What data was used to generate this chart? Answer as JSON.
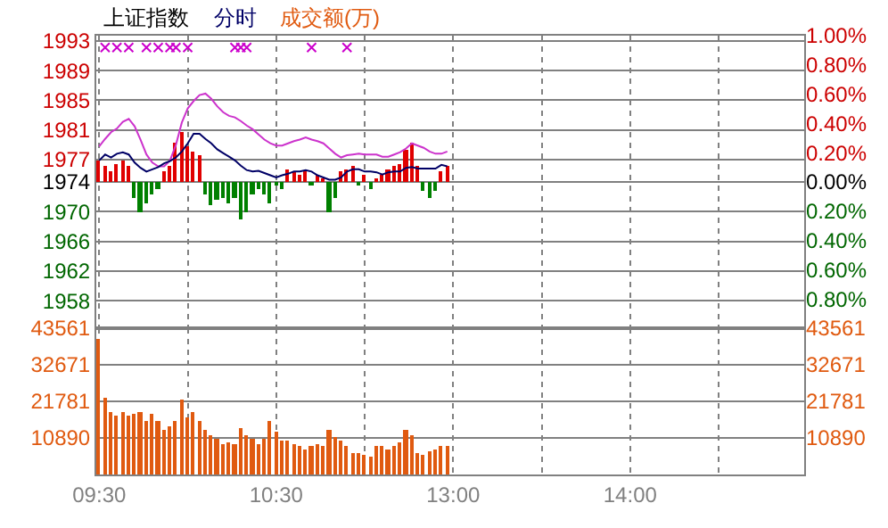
{
  "chart_data": [
    {
      "type": "line",
      "title": "上证指数",
      "categories": [
        null,
        null,
        null,
        null,
        null,
        null,
        null,
        null,
        null,
        null,
        null,
        null,
        null,
        null,
        null,
        null,
        null,
        null,
        null,
        null,
        null,
        null,
        null,
        null,
        null,
        null,
        null,
        null,
        null,
        null,
        null,
        null,
        null,
        null,
        null,
        null,
        null,
        null,
        null,
        null,
        null,
        null,
        null,
        null,
        null,
        null,
        null,
        null,
        null,
        null,
        null,
        null,
        null,
        null,
        null,
        null,
        null,
        null,
        null,
        null,
        null,
        null,
        null,
        null,
        null,
        null,
        null,
        null,
        null,
        null,
        null,
        null,
        null,
        null,
        null,
        null,
        null,
        null,
        null,
        null,
        null,
        null,
        null,
        null,
        null,
        null,
        null,
        null,
        null,
        null,
        null,
        null,
        null,
        null,
        null,
        null,
        null,
        null,
        null,
        null,
        null,
        null,
        null,
        null,
        null,
        null,
        null,
        null,
        null,
        null,
        null,
        null,
        null,
        null,
        null,
        null,
        null,
        null,
        null,
        null
      ],
      "series": [
        {
          "type": "bar",
          "colors": [
            "#e00000",
            "#e00000",
            "#e00000",
            "#e00000",
            "#e00000",
            "#e00000",
            "#008000",
            "#008000",
            "#008000",
            "#008000",
            "#008000",
            "#e00000",
            "#e00000",
            "#e00000",
            "#e00000",
            "#e00000",
            "#e00000",
            "#e00000",
            "#008000",
            "#008000",
            "#008000",
            "#008000",
            "#008000",
            "#008000",
            "#008000",
            "#008000",
            "#008000",
            "#008000",
            "#008000",
            "#008000",
            "#008000",
            "#008000",
            "#e00000",
            "#e00000",
            "#e00000",
            "#e00000",
            "#008000",
            "#e00000",
            "#e00000",
            "#008000",
            "#008000",
            "#e00000",
            "#e00000",
            "#e00000",
            "#008000",
            "#e00000",
            "#008000",
            "#e00000",
            "#e00000",
            "#e00000",
            "#e00000",
            "#e00000",
            "#e00000",
            "#e00000",
            "#e00000",
            "#008000",
            "#008000",
            "#008000",
            "#e00000",
            "#e00000",
            null,
            null,
            null,
            null,
            null,
            null,
            null,
            null,
            null,
            null,
            null,
            null,
            null,
            null,
            null,
            null,
            null,
            null,
            null,
            null,
            null,
            null,
            null,
            null,
            null,
            null,
            null,
            null,
            null,
            null,
            null,
            null,
            null,
            null,
            null,
            null,
            null,
            null,
            null,
            null,
            null,
            null,
            null,
            null,
            null,
            null,
            null,
            null,
            null,
            null,
            null,
            null,
            null,
            null,
            null,
            null,
            null,
            null,
            null,
            null
          ],
          "base": [
            1974,
            1974,
            1974,
            1974,
            1974,
            1974,
            1974,
            1974,
            1974,
            1974,
            1974,
            1974,
            1974,
            1974,
            1974,
            1974,
            1974,
            1974,
            1974,
            1974,
            1974,
            1974,
            1974,
            1974,
            1974,
            1974,
            1974,
            1974,
            1974,
            1974,
            1974,
            1974,
            1974,
            1974,
            1974,
            1974,
            1974,
            1974,
            1974,
            1974,
            1974,
            1974,
            1974,
            1974,
            1974,
            1974,
            1974,
            1974,
            1974,
            1974,
            1974,
            1974,
            1974,
            1974,
            1974,
            1974,
            1974,
            1974,
            1974,
            1974,
            null,
            null,
            null,
            null,
            null,
            null,
            null,
            null,
            null,
            null,
            null,
            null,
            null,
            null,
            null,
            null,
            null,
            null,
            null,
            null,
            null,
            null,
            null,
            null,
            null,
            null,
            null,
            null,
            null,
            null,
            null,
            null,
            null,
            null,
            null,
            null,
            null,
            null,
            null,
            null,
            null,
            null,
            null,
            null,
            null,
            null,
            null,
            null,
            null,
            null,
            null,
            null,
            null,
            null,
            null,
            null,
            null,
            null,
            null,
            null
          ],
          "values": [
            2.9,
            2.1,
            1.4,
            2.5,
            2.9,
            2.1,
            -2.1,
            -4.0,
            -2.8,
            -1.7,
            -0.9,
            1.4,
            2.1,
            5.2,
            6.7,
            4.8,
            4.1,
            3.7,
            -1.7,
            -3.2,
            -2.4,
            -2.1,
            -2.8,
            -2.1,
            -5.1,
            -4.0,
            -1.7,
            -0.9,
            -1.7,
            -2.8,
            -0.5,
            -0.9,
            1.8,
            1.4,
            1.0,
            1.4,
            -0.5,
            1.0,
            0.6,
            -4.0,
            -2.1,
            1.4,
            1.8,
            2.1,
            -0.5,
            1.0,
            -0.9,
            0.6,
            1.0,
            1.8,
            2.1,
            2.5,
            4.4,
            5.2,
            2.1,
            -1.3,
            -2.1,
            -1.3,
            1.4,
            2.1,
            null,
            null,
            null,
            null,
            null,
            null,
            null,
            null,
            null,
            null,
            null,
            null,
            null,
            null,
            null,
            null,
            null,
            null,
            null,
            null,
            null,
            null,
            null,
            null,
            null,
            null,
            null,
            null,
            null,
            null,
            null,
            null,
            null,
            null,
            null,
            null,
            null,
            null,
            null,
            null,
            null,
            null,
            null,
            null,
            null,
            null,
            null,
            null,
            null,
            null,
            null,
            null,
            null,
            null,
            null,
            null,
            null,
            null,
            null,
            null
          ]
        },
        {
          "color": "#cc33cc",
          "values": [
            1978.8,
            1979.8,
            1980.7,
            1981.2,
            1982.1,
            1982.5,
            1981.5,
            1979.7,
            1977.7,
            1976.6,
            1976.1,
            1976.1,
            1976.9,
            1979.0,
            1982.0,
            1983.9,
            1984.9,
            1985.7,
            1985.9,
            1985.2,
            1984.2,
            1983.4,
            1982.9,
            1982.7,
            1982.2,
            1981.6,
            1981.1,
            1980.4,
            1979.7,
            1979.2,
            1978.9,
            1978.9,
            1979.2,
            1979.5,
            1979.7,
            1980.0,
            1979.7,
            1979.5,
            1979.2,
            1978.5,
            1977.8,
            1977.3,
            1977.6,
            1977.7,
            1977.8,
            1977.7,
            1977.7,
            1977.7,
            1977.4,
            1977.4,
            1977.7,
            1978.0,
            1978.5,
            1979.2,
            1978.9,
            1978.6,
            1978.1,
            1977.8,
            1977.8,
            1978.1,
            null,
            null,
            null,
            null,
            null,
            null,
            null,
            null,
            null,
            null,
            null,
            null,
            null,
            null,
            null,
            null,
            null,
            null,
            null,
            null,
            null,
            null,
            null,
            null,
            null,
            null,
            null,
            null,
            null,
            null,
            null,
            null,
            null,
            null,
            null,
            null,
            null,
            null,
            null,
            null,
            null,
            null,
            null,
            null,
            null,
            null,
            null,
            null,
            null,
            null,
            null,
            null,
            null,
            null,
            null,
            null,
            null,
            null,
            null,
            null
          ]
        },
        {
          "name": "分时",
          "color": "#000066",
          "values": [
            1976.9,
            1977.7,
            1977.3,
            1977.8,
            1978.0,
            1977.7,
            1976.6,
            1975.9,
            1975.4,
            1975.7,
            1976.0,
            1976.5,
            1976.8,
            1977.3,
            1978.1,
            1979.2,
            1980.5,
            1980.5,
            1979.8,
            1979.2,
            1978.4,
            1977.9,
            1977.4,
            1976.9,
            1976.2,
            1975.6,
            1975.4,
            1975.5,
            1975.2,
            1974.9,
            1974.6,
            1974.9,
            1975.1,
            1975.4,
            1975.4,
            1975.6,
            1975.4,
            1974.9,
            1974.6,
            1974.3,
            1974.3,
            1974.6,
            1975.4,
            1975.7,
            1975.7,
            1975.4,
            1975.4,
            1975.3,
            1975.0,
            1975.3,
            1975.4,
            1975.4,
            1975.9,
            1976.0,
            1975.8,
            1975.8,
            1975.8,
            1975.8,
            1976.3,
            1976.1,
            null,
            null,
            null,
            null,
            null,
            null,
            null,
            null,
            null,
            null,
            null,
            null,
            null,
            null,
            null,
            null,
            null,
            null,
            null,
            null,
            null,
            null,
            null,
            null,
            null,
            null,
            null,
            null,
            null,
            null,
            null,
            null,
            null,
            null,
            null,
            null,
            null,
            null,
            null,
            null,
            null,
            null,
            null,
            null,
            null,
            null,
            null,
            null,
            null,
            null,
            null,
            null,
            null,
            null,
            null,
            null,
            null,
            null,
            null,
            null
          ]
        },
        {
          "type": "scatter",
          "marker": "cross",
          "color": "#cc00cc",
          "values": [
            null,
            1992.1,
            null,
            1992.1,
            null,
            1992.1,
            null,
            null,
            1992.1,
            null,
            1992.1,
            null,
            1992.1,
            1992.1,
            null,
            1992.1,
            null,
            null,
            null,
            null,
            null,
            null,
            null,
            1992.1,
            1992.1,
            1992.1,
            null,
            null,
            null,
            null,
            null,
            null,
            null,
            null,
            null,
            null,
            1992.1,
            null,
            null,
            null,
            null,
            null,
            1992.1,
            null,
            null,
            null,
            null,
            null,
            null,
            null,
            null,
            null,
            null,
            null,
            null,
            null,
            null,
            null,
            null,
            null,
            null,
            null,
            null,
            null,
            null,
            null,
            null,
            null,
            null,
            null,
            null,
            null,
            null,
            null,
            null,
            null,
            null,
            null,
            null,
            null,
            null,
            null,
            null,
            null,
            null,
            null,
            null,
            null,
            null,
            null,
            null,
            null,
            null,
            null,
            null,
            null,
            null,
            null,
            null,
            null,
            null,
            null,
            null,
            null,
            null,
            null,
            null,
            null,
            null,
            null,
            null,
            null,
            null,
            null,
            null,
            null,
            null,
            null,
            null,
            null
          ]
        }
      ],
      "ylim": [
        1954.3,
        1993.7
      ],
      "yticks": [
        {
          "value": 1993,
          "label": "1993"
        },
        {
          "value": 1989,
          "label": "1989"
        },
        {
          "value": 1985,
          "label": "1985"
        },
        {
          "value": 1981,
          "label": "1981"
        },
        {
          "value": 1977,
          "label": "1977"
        },
        {
          "value": 1974,
          "label": "1974"
        },
        {
          "value": 1970,
          "label": "1970"
        },
        {
          "value": 1966,
          "label": "1966"
        },
        {
          "value": 1962,
          "label": "1962"
        },
        {
          "value": 1958,
          "label": "1958"
        }
      ],
      "y2lim": [
        -1,
        1
      ],
      "y2ticks": [
        {
          "value": 1,
          "label": "1.00%"
        },
        {
          "value": 0.8,
          "label": "0.80%"
        },
        {
          "value": 0.6,
          "label": "0.60%"
        },
        {
          "value": 0.4,
          "label": "0.40%"
        },
        {
          "value": 0.2,
          "label": "0.20%"
        },
        {
          "value": 0,
          "label": "0.00%"
        },
        {
          "value": -0.2,
          "label": "0.20%"
        },
        {
          "value": -0.4,
          "label": "0.40%"
        },
        {
          "value": -0.6,
          "label": "0.60%"
        },
        {
          "value": -0.8,
          "label": "0.80%"
        }
      ],
      "tick_labels": [
        "y",
        "y2"
      ],
      "grid": true
    },
    {
      "type": "bar",
      "categories": [
        "09:30",
        null,
        null,
        null,
        null,
        null,
        null,
        null,
        null,
        null,
        null,
        null,
        null,
        null,
        null,
        null,
        null,
        null,
        null,
        null,
        null,
        null,
        null,
        null,
        null,
        null,
        null,
        null,
        null,
        null,
        "10:30",
        null,
        null,
        null,
        null,
        null,
        null,
        null,
        null,
        null,
        null,
        null,
        null,
        null,
        null,
        null,
        null,
        null,
        null,
        null,
        null,
        null,
        null,
        null,
        null,
        null,
        null,
        null,
        null,
        null,
        "13:00",
        null,
        null,
        null,
        null,
        null,
        null,
        null,
        null,
        null,
        null,
        null,
        null,
        null,
        null,
        null,
        null,
        null,
        null,
        null,
        null,
        null,
        null,
        null,
        null,
        null,
        null,
        null,
        null,
        null,
        "14:00",
        null,
        null,
        null,
        null,
        null,
        null,
        null,
        null,
        null,
        null,
        null,
        null,
        null,
        null,
        null,
        null,
        null,
        null,
        null,
        null,
        null,
        null,
        null,
        null,
        null,
        null,
        null,
        null,
        null
      ],
      "series": [
        {
          "name": "成交额(万)",
          "color": "#e05a10",
          "values": [
            40400,
            22600,
            18400,
            17600,
            18400,
            17600,
            18000,
            18400,
            15900,
            17900,
            15900,
            13300,
            14200,
            15900,
            22300,
            17200,
            18400,
            15900,
            13300,
            11700,
            10500,
            9100,
            9300,
            9100,
            13800,
            11700,
            10800,
            9100,
            10500,
            15900,
            12500,
            10000,
            10000,
            8800,
            8300,
            7500,
            8300,
            8800,
            8300,
            13300,
            11100,
            10000,
            8300,
            6600,
            6600,
            5700,
            5400,
            8600,
            8300,
            7500,
            8300,
            9300,
            13300,
            11700,
            6600,
            6100,
            7100,
            7500,
            8600,
            8300,
            null,
            null,
            null,
            null,
            null,
            null,
            null,
            null,
            null,
            null,
            null,
            null,
            null,
            null,
            null,
            null,
            null,
            null,
            null,
            null,
            null,
            null,
            null,
            null,
            null,
            null,
            null,
            null,
            null,
            null,
            null,
            null,
            null,
            null,
            null,
            null,
            null,
            null,
            null,
            null,
            null,
            null,
            null,
            null,
            null,
            null,
            null,
            null,
            null,
            null,
            null,
            null,
            null,
            null,
            null,
            null,
            null,
            null,
            null,
            null
          ]
        }
      ],
      "ylim": [
        0,
        43561
      ],
      "yticks": [
        10890,
        21781,
        32671,
        43561
      ],
      "y2lim": [
        0,
        43561
      ],
      "y2ticks": [
        10890,
        21781,
        32671,
        43561
      ],
      "grid": true
    }
  ]
}
